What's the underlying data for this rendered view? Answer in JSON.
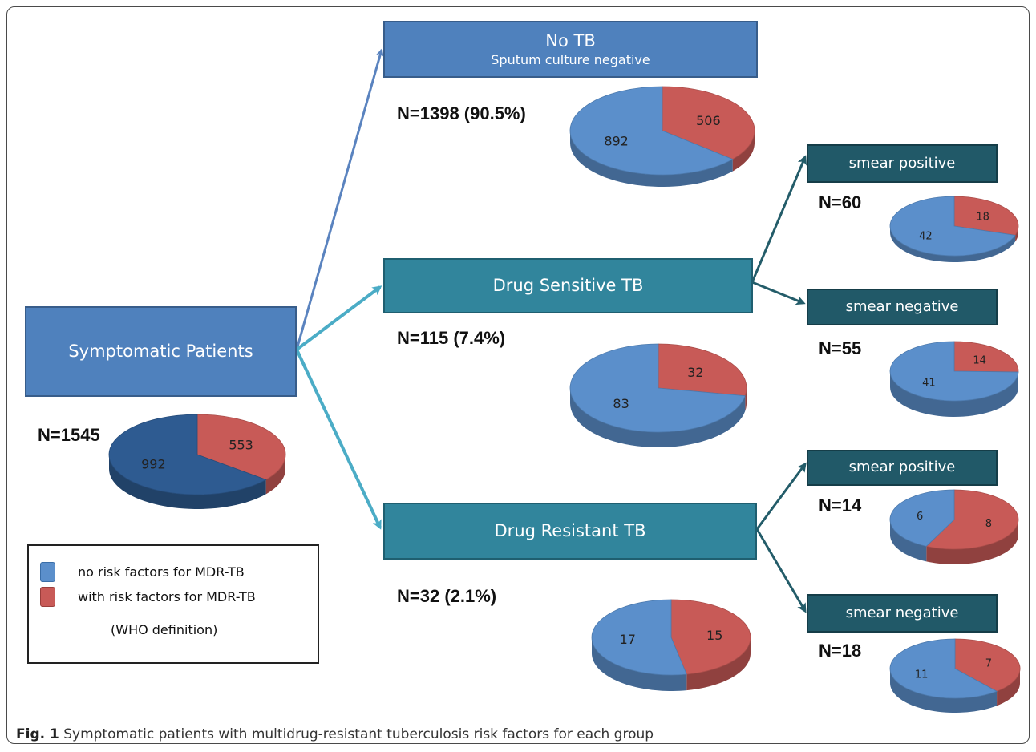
{
  "colors": {
    "no_risk": "#5b8fcb",
    "with_risk": "#c85a57",
    "root_no_risk": "#2e5b91",
    "arrow_blue": "#5a83bf",
    "arrow_teal": "#4bacc6",
    "arrow_dark": "#235c69"
  },
  "boxes": {
    "symptomatic": {
      "line1": "Symptomatic Patients"
    },
    "no_tb": {
      "line1": "No TB",
      "line2": "Sputum culture negative"
    },
    "drug_sensitive": {
      "line1": "Drug Sensitive TB"
    },
    "drug_resistant": {
      "line1": "Drug Resistant TB"
    },
    "ds_smear_pos": {
      "line1": "smear positive"
    },
    "ds_smear_neg": {
      "line1": "smear negative"
    },
    "dr_smear_pos": {
      "line1": "smear positive"
    },
    "dr_smear_neg": {
      "line1": "smear negative"
    }
  },
  "counts": {
    "symptomatic": "N=1545",
    "no_tb": "N=1398 (90.5%)",
    "drug_sensitive": "N=115 (7.4%)",
    "drug_resistant": "N=32 (2.1%)",
    "ds_smear_pos": "N=60",
    "ds_smear_neg": "N=55",
    "dr_smear_pos": "N=14",
    "dr_smear_neg": "N=18"
  },
  "pies": {
    "symptomatic": {
      "no_risk": 992,
      "with_risk": 553
    },
    "no_tb": {
      "no_risk": 892,
      "with_risk": 506
    },
    "drug_sensitive": {
      "no_risk": 83,
      "with_risk": 32
    },
    "drug_resistant": {
      "no_risk": 17,
      "with_risk": 15
    },
    "ds_smear_pos": {
      "no_risk": 42,
      "with_risk": 18
    },
    "ds_smear_neg": {
      "no_risk": 41,
      "with_risk": 14
    },
    "dr_smear_pos": {
      "no_risk": 6,
      "with_risk": 8
    },
    "dr_smear_neg": {
      "no_risk": 11,
      "with_risk": 7
    }
  },
  "legend": {
    "no_risk": "no risk factors for MDR-TB",
    "with_risk": "with risk factors for MDR-TB",
    "note": "(WHO definition)"
  },
  "caption": {
    "label": "Fig. 1",
    "text": " Symptomatic patients with multidrug-resistant tuberculosis risk factors for each group"
  }
}
